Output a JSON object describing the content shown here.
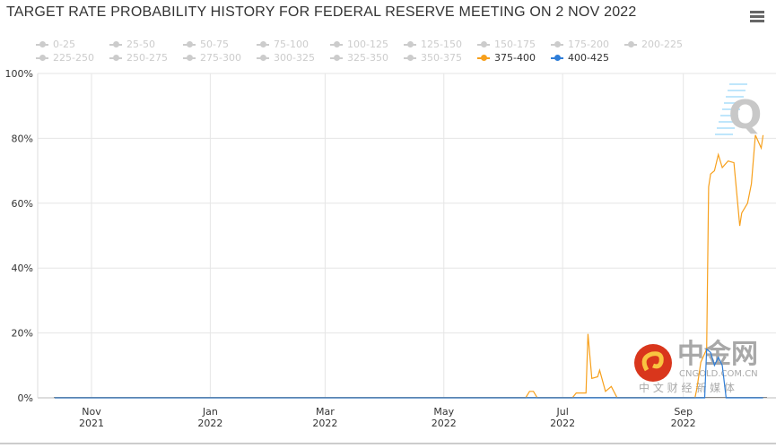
{
  "chart_data": {
    "type": "line",
    "title": "TARGET RATE PROBABILITY HISTORY FOR FEDERAL RESERVE MEETING ON 2 NOV 2022",
    "xlabel": "",
    "ylabel": "",
    "xlim": [
      "2021-10-13",
      "2022-10-13"
    ],
    "ylim": [
      0,
      100
    ],
    "y_ticks": [
      "0%",
      "20%",
      "40%",
      "60%",
      "80%",
      "100%"
    ],
    "x_ticks": [
      {
        "date": "2021-11-01",
        "label": [
          "Nov",
          "2021"
        ]
      },
      {
        "date": "2022-01-01",
        "label": [
          "Jan",
          "2022"
        ]
      },
      {
        "date": "2022-03-01",
        "label": [
          "Mar",
          "2022"
        ]
      },
      {
        "date": "2022-05-01",
        "label": [
          "May",
          "2022"
        ]
      },
      {
        "date": "2022-07-01",
        "label": [
          "Jul",
          "2022"
        ]
      },
      {
        "date": "2022-09-01",
        "label": [
          "Sep",
          "2022"
        ]
      }
    ],
    "grid": true,
    "legend_position": "top",
    "legend": [
      {
        "name": "0-25",
        "active": false
      },
      {
        "name": "25-50",
        "active": false
      },
      {
        "name": "50-75",
        "active": false
      },
      {
        "name": "75-100",
        "active": false
      },
      {
        "name": "100-125",
        "active": false
      },
      {
        "name": "125-150",
        "active": false
      },
      {
        "name": "150-175",
        "active": false
      },
      {
        "name": "175-200",
        "active": false
      },
      {
        "name": "200-225",
        "active": false
      },
      {
        "name": "225-250",
        "active": false
      },
      {
        "name": "250-275",
        "active": false
      },
      {
        "name": "275-300",
        "active": false
      },
      {
        "name": "300-325",
        "active": false
      },
      {
        "name": "325-350",
        "active": false
      },
      {
        "name": "350-375",
        "active": false
      },
      {
        "name": "375-400",
        "active": true,
        "color": "#f7a01c"
      },
      {
        "name": "400-425",
        "active": true,
        "color": "#2f7ed8"
      }
    ],
    "series": [
      {
        "name": "375-400",
        "color": "#f7a01c",
        "points": [
          [
            "2021-10-13",
            0
          ],
          [
            "2022-06-12",
            0
          ],
          [
            "2022-06-14",
            2
          ],
          [
            "2022-06-16",
            2
          ],
          [
            "2022-06-18",
            0
          ],
          [
            "2022-07-06",
            0
          ],
          [
            "2022-07-08",
            1.5
          ],
          [
            "2022-07-13",
            1.5
          ],
          [
            "2022-07-14",
            19.7
          ],
          [
            "2022-07-16",
            6
          ],
          [
            "2022-07-19",
            6.5
          ],
          [
            "2022-07-20",
            8.5
          ],
          [
            "2022-07-23",
            2
          ],
          [
            "2022-07-26",
            3.5
          ],
          [
            "2022-07-29",
            0
          ],
          [
            "2022-09-07",
            0
          ],
          [
            "2022-09-08",
            3
          ],
          [
            "2022-09-10",
            11
          ],
          [
            "2022-09-13",
            15
          ],
          [
            "2022-09-14",
            65
          ],
          [
            "2022-09-15",
            69
          ],
          [
            "2022-09-17",
            70
          ],
          [
            "2022-09-19",
            75
          ],
          [
            "2022-09-21",
            71
          ],
          [
            "2022-09-24",
            73
          ],
          [
            "2022-09-27",
            72.5
          ],
          [
            "2022-09-30",
            53
          ],
          [
            "2022-10-01",
            57
          ],
          [
            "2022-10-04",
            60
          ],
          [
            "2022-10-06",
            66
          ],
          [
            "2022-10-08",
            81
          ],
          [
            "2022-10-11",
            77
          ],
          [
            "2022-10-12",
            81
          ]
        ]
      },
      {
        "name": "400-425",
        "color": "#2f7ed8",
        "points": [
          [
            "2021-10-13",
            0
          ],
          [
            "2022-09-12",
            0
          ],
          [
            "2022-09-13",
            15
          ],
          [
            "2022-09-15",
            14
          ],
          [
            "2022-09-17",
            10
          ],
          [
            "2022-09-19",
            12.5
          ],
          [
            "2022-09-21",
            10
          ],
          [
            "2022-09-23",
            0
          ],
          [
            "2022-10-12",
            0
          ]
        ]
      }
    ]
  },
  "watermark": {
    "brand": "中金网",
    "domain": "CNGOLD.COM.CN",
    "slogan": "中 文 财 经 新 媒 体"
  },
  "menu_icon": "hamburger-menu-icon"
}
